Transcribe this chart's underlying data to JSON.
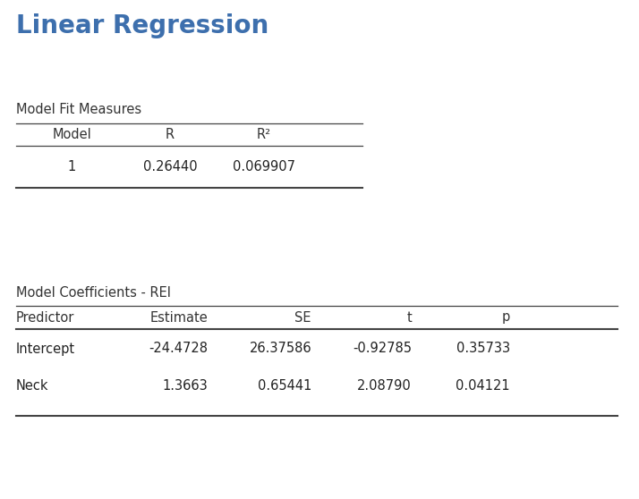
{
  "title": "Linear Regression",
  "title_color": "#3d6fad",
  "background_color": "#ffffff",
  "table1_title": "Model Fit Measures",
  "table1_headers": [
    "Model",
    "R",
    "R²"
  ],
  "table1_data": [
    [
      "1",
      "0.26440",
      "0.069907"
    ]
  ],
  "table2_title": "Model Coefficients - REI",
  "table2_headers": [
    "Predictor",
    "Estimate",
    "SE",
    "t",
    "p"
  ],
  "table2_data": [
    [
      "Intercept",
      "-24.4728",
      "26.37586",
      "-0.92785",
      "0.35733"
    ],
    [
      "Neck",
      "1.3663",
      "0.65441",
      "2.08790",
      "0.04121"
    ]
  ],
  "font_family": "DejaVu Sans",
  "title_fontsize": 20,
  "section_title_fontsize": 10.5,
  "header_fontsize": 10.5,
  "data_fontsize": 10.5,
  "line_color": "#444444",
  "header_text_color": "#333333",
  "data_text_color": "#222222",
  "section_title_color": "#333333",
  "fig_width": 7.14,
  "fig_height": 5.58,
  "dpi": 100
}
